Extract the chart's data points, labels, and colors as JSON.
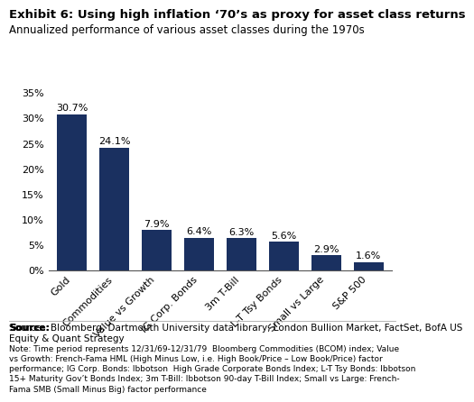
{
  "title": "Exhibit 6: Using high inflation ‘70’s as proxy for asset class returns",
  "subtitle": "Annualized performance of various asset classes during the 1970s",
  "categories": [
    "Gold",
    "Commodities",
    "Value vs Growth",
    "IG Corp. Bonds",
    "3m T-Bill",
    "L-T Tsy Bonds",
    "Small vs Large",
    "S&P 500"
  ],
  "values": [
    30.7,
    24.1,
    7.9,
    6.4,
    6.3,
    5.6,
    2.9,
    1.6
  ],
  "bar_color": "#1a3060",
  "ylim": [
    0,
    35
  ],
  "yticks": [
    0,
    5,
    10,
    15,
    20,
    25,
    30,
    35
  ],
  "ytick_labels": [
    "0%",
    "5%",
    "10%",
    "15%",
    "20%",
    "25%",
    "30%",
    "35%"
  ],
  "source_bold": "Source:",
  "source_text": "  Bloomberg, Dartmouth University data library, London Bullion Market, FactSet, BofA US\nEquity & Quant Strategy",
  "note_text": "Note: Time period represents 12/31/69-12/31/79  Bloomberg Commodities (BCOM) index; Value\nvs Growth: French-Fama HML (High Minus Low, i.e. High Book/Price – Low Book/Price) factor\nperformance; IG Corp. Bonds: Ibbotson  High Grade Corporate Bonds Index; L-T Tsy Bonds: Ibbotson\n15+ Maturity Gov’t Bonds Index; 3m T-Bill: Ibbotson 90-day T-Bill Index; Small vs Large: French-\nFama SMB (Small Minus Big) factor performance",
  "bg_color": "#ffffff",
  "title_fontsize": 9.5,
  "subtitle_fontsize": 8.5,
  "tick_fontsize": 8,
  "value_fontsize": 8,
  "note_fontsize": 6.5,
  "source_fontsize": 7.5
}
